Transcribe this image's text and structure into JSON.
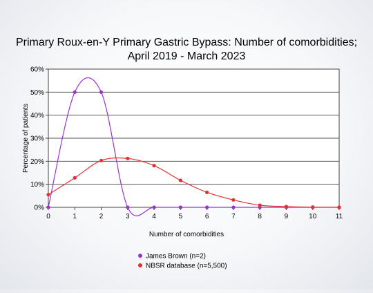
{
  "chart_data": {
    "type": "line",
    "title_lines": [
      "Primary Roux-en-Y Primary Gastric Bypass: Number of comorbidities;",
      "April 2019 - March 2023"
    ],
    "xlabel": "Number of comorbidities",
    "ylabel": "Percentage of patients",
    "x": [
      0,
      1,
      2,
      3,
      4,
      5,
      6,
      7,
      8,
      9,
      10,
      11
    ],
    "xlim": [
      0,
      11
    ],
    "ylim": [
      0,
      60
    ],
    "y_ticks": [
      "0%",
      "10%",
      "20%",
      "30%",
      "40%",
      "50%",
      "60%"
    ],
    "x_ticks": [
      "0",
      "1",
      "2",
      "3",
      "4",
      "5",
      "6",
      "7",
      "8",
      "9",
      "10",
      "11"
    ],
    "grid": "horizontal",
    "legend_position": "bottom",
    "series": [
      {
        "name": "James Brown (n=2)",
        "color": "#9933cc",
        "values": [
          0,
          50,
          50,
          0,
          0,
          0,
          0,
          0,
          0,
          0,
          0,
          0
        ]
      },
      {
        "name": "NBSR database (n=5,500)",
        "color": "#e03030",
        "values": [
          5.5,
          12.8,
          20.3,
          21.2,
          18.1,
          11.7,
          6.5,
          3.2,
          0.9,
          0.3,
          0.1,
          0.0
        ]
      }
    ]
  }
}
